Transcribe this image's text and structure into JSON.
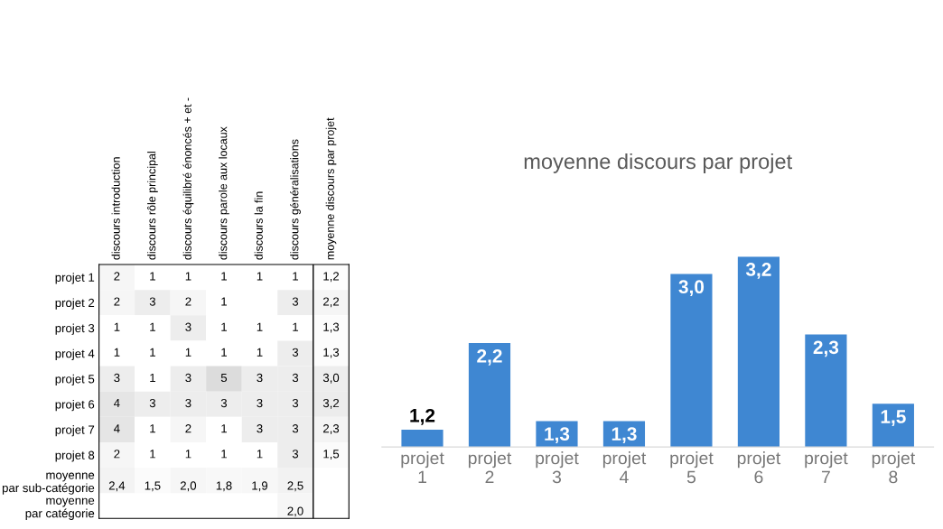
{
  "chart_data": [
    {
      "type": "heatmap",
      "categories": [
        "discours introduction",
        "discours rôle principal",
        "discours équilibré énoncés + et -",
        "discours parole aux locaux",
        "discours la fin",
        "discours généralisations",
        "moyenne discours par projet"
      ],
      "y_categories": [
        "projet 1",
        "projet 2",
        "projet 3",
        "projet 4",
        "projet 5",
        "projet 6",
        "projet 7",
        "projet 8",
        "moyenne\npar sub-catégorie",
        "moyenne\npar catégorie"
      ],
      "cells": [
        [
          2,
          1,
          1,
          1,
          1,
          1,
          1.2
        ],
        [
          2,
          3,
          2,
          1,
          null,
          3,
          2.2
        ],
        [
          1,
          1,
          3,
          1,
          1,
          1,
          1.3
        ],
        [
          1,
          1,
          1,
          1,
          1,
          3,
          1.3
        ],
        [
          3,
          1,
          3,
          5,
          3,
          3,
          3.0
        ],
        [
          4,
          3,
          3,
          3,
          3,
          3,
          3.2
        ],
        [
          4,
          1,
          2,
          1,
          3,
          3,
          2.3
        ],
        [
          2,
          1,
          1,
          1,
          1,
          3,
          1.5
        ],
        [
          2.4,
          1.5,
          2.0,
          1.8,
          1.9,
          2.5,
          null
        ],
        [
          null,
          null,
          null,
          null,
          null,
          2.0,
          null
        ]
      ],
      "cell_labels": [
        [
          "2",
          "1",
          "1",
          "1",
          "1",
          "1",
          "1,2"
        ],
        [
          "2",
          "3",
          "2",
          "1",
          null,
          "3",
          "2,2"
        ],
        [
          "1",
          "1",
          "3",
          "1",
          "1",
          "1",
          "1,3"
        ],
        [
          "1",
          "1",
          "1",
          "1",
          "1",
          "3",
          "1,3"
        ],
        [
          "3",
          "1",
          "3",
          "5",
          "3",
          "3",
          "3,0"
        ],
        [
          "4",
          "3",
          "3",
          "3",
          "3",
          "3",
          "3,2"
        ],
        [
          "4",
          "1",
          "2",
          "1",
          "3",
          "3",
          "2,3"
        ],
        [
          "2",
          "1",
          "1",
          "1",
          "1",
          "3",
          "1,5"
        ],
        [
          "2,4",
          "1,5",
          "2,0",
          "1,8",
          "1,9",
          "2,5",
          null
        ],
        [
          null,
          null,
          null,
          null,
          null,
          "2,0",
          null
        ]
      ]
    },
    {
      "type": "bar",
      "title": "moyenne discours par projet",
      "categories": [
        "projet\n1",
        "projet\n2",
        "projet\n3",
        "projet\n4",
        "projet\n5",
        "projet\n6",
        "projet\n7",
        "projet\n8"
      ],
      "values": [
        1.2,
        2.2,
        1.3,
        1.3,
        3.0,
        3.2,
        2.3,
        1.5
      ],
      "value_labels": [
        "1,2",
        "2,2",
        "1,3",
        "1,3",
        "3,0",
        "3,2",
        "2,3",
        "1,5"
      ],
      "color": "#3f87d2",
      "ylim": [
        1,
        3.2
      ]
    }
  ]
}
